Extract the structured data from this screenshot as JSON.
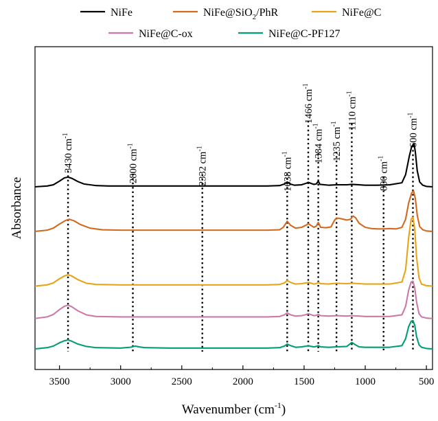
{
  "chart_data": {
    "type": "line",
    "xlabel": "Wavenumber (cm",
    "xlabel_sup": "-1",
    "xlabel_close": ")",
    "ylabel": "Absorbance",
    "xlim": [
      3700,
      450
    ],
    "x_reversed": true,
    "y_ticks": false,
    "grid": false,
    "legend_position": "top",
    "x_ticks": [
      3500,
      3000,
      2500,
      2000,
      1500,
      1000,
      500
    ],
    "x_tick_labels": [
      "3500",
      "3000",
      "2500",
      "2000",
      "1500",
      "1000",
      "500"
    ],
    "series": [
      {
        "name": "NiFe",
        "name_parts": [
          "NiFe"
        ],
        "color": "#000000",
        "offset": 4.0,
        "points": [
          [
            3700,
            0.0
          ],
          [
            3600,
            0.02
          ],
          [
            3550,
            0.05
          ],
          [
            3500,
            0.14
          ],
          [
            3460,
            0.22
          ],
          [
            3430,
            0.24
          ],
          [
            3400,
            0.21
          ],
          [
            3350,
            0.13
          ],
          [
            3300,
            0.07
          ],
          [
            3200,
            0.03
          ],
          [
            3100,
            0.02
          ],
          [
            3000,
            0.02
          ],
          [
            2900,
            0.02
          ],
          [
            2800,
            0.02
          ],
          [
            2600,
            0.02
          ],
          [
            2400,
            0.02
          ],
          [
            2332,
            0.02
          ],
          [
            2200,
            0.02
          ],
          [
            2000,
            0.02
          ],
          [
            1800,
            0.02
          ],
          [
            1700,
            0.03
          ],
          [
            1660,
            0.07
          ],
          [
            1638,
            0.12
          ],
          [
            1615,
            0.07
          ],
          [
            1580,
            0.04
          ],
          [
            1520,
            0.05
          ],
          [
            1480,
            0.09
          ],
          [
            1466,
            0.11
          ],
          [
            1440,
            0.08
          ],
          [
            1420,
            0.06
          ],
          [
            1400,
            0.07
          ],
          [
            1384,
            0.14
          ],
          [
            1370,
            0.06
          ],
          [
            1300,
            0.04
          ],
          [
            1235,
            0.05
          ],
          [
            1150,
            0.05
          ],
          [
            1110,
            0.06
          ],
          [
            1050,
            0.05
          ],
          [
            1000,
            0.04
          ],
          [
            900,
            0.04
          ],
          [
            800,
            0.05
          ],
          [
            700,
            0.1
          ],
          [
            670,
            0.3
          ],
          [
            640,
            0.75
          ],
          [
            620,
            1.0
          ],
          [
            600,
            1.05
          ],
          [
            590,
            0.85
          ],
          [
            575,
            0.4
          ],
          [
            555,
            0.12
          ],
          [
            530,
            0.04
          ],
          [
            500,
            0.01
          ],
          [
            450,
            0.0
          ]
        ]
      },
      {
        "name": "NiFe@SiO2/PhR",
        "name_parts": [
          "NiFe@SiO",
          "2",
          "/PhR"
        ],
        "color": "#d2691e",
        "offset": 2.9,
        "points": [
          [
            3700,
            0.0
          ],
          [
            3600,
            0.03
          ],
          [
            3550,
            0.08
          ],
          [
            3500,
            0.18
          ],
          [
            3450,
            0.27
          ],
          [
            3420,
            0.3
          ],
          [
            3380,
            0.26
          ],
          [
            3330,
            0.17
          ],
          [
            3250,
            0.08
          ],
          [
            3150,
            0.04
          ],
          [
            3000,
            0.03
          ],
          [
            2800,
            0.03
          ],
          [
            2600,
            0.03
          ],
          [
            2400,
            0.03
          ],
          [
            2200,
            0.03
          ],
          [
            2000,
            0.03
          ],
          [
            1800,
            0.03
          ],
          [
            1700,
            0.04
          ],
          [
            1670,
            0.1
          ],
          [
            1638,
            0.25
          ],
          [
            1610,
            0.15
          ],
          [
            1570,
            0.08
          ],
          [
            1520,
            0.1
          ],
          [
            1480,
            0.16
          ],
          [
            1466,
            0.19
          ],
          [
            1440,
            0.14
          ],
          [
            1420,
            0.1
          ],
          [
            1400,
            0.13
          ],
          [
            1384,
            0.22
          ],
          [
            1365,
            0.1
          ],
          [
            1320,
            0.09
          ],
          [
            1280,
            0.11
          ],
          [
            1250,
            0.28
          ],
          [
            1235,
            0.33
          ],
          [
            1210,
            0.32
          ],
          [
            1180,
            0.3
          ],
          [
            1150,
            0.28
          ],
          [
            1120,
            0.3
          ],
          [
            1100,
            0.38
          ],
          [
            1080,
            0.34
          ],
          [
            1050,
            0.2
          ],
          [
            1000,
            0.1
          ],
          [
            950,
            0.07
          ],
          [
            900,
            0.06
          ],
          [
            850,
            0.06
          ],
          [
            800,
            0.07
          ],
          [
            750,
            0.06
          ],
          [
            700,
            0.1
          ],
          [
            670,
            0.3
          ],
          [
            645,
            0.7
          ],
          [
            620,
            0.95
          ],
          [
            605,
            1.0
          ],
          [
            590,
            0.8
          ],
          [
            575,
            0.4
          ],
          [
            555,
            0.12
          ],
          [
            530,
            0.04
          ],
          [
            500,
            0.01
          ],
          [
            450,
            0.0
          ]
        ]
      },
      {
        "name": "NiFe@C",
        "name_parts": [
          "NiFe@C"
        ],
        "color": "#e8a317",
        "offset": 1.55,
        "points": [
          [
            3700,
            0.0
          ],
          [
            3600,
            0.03
          ],
          [
            3550,
            0.08
          ],
          [
            3500,
            0.18
          ],
          [
            3460,
            0.25
          ],
          [
            3430,
            0.28
          ],
          [
            3400,
            0.25
          ],
          [
            3350,
            0.16
          ],
          [
            3280,
            0.07
          ],
          [
            3200,
            0.04
          ],
          [
            3000,
            0.03
          ],
          [
            2800,
            0.03
          ],
          [
            2600,
            0.03
          ],
          [
            2400,
            0.03
          ],
          [
            2200,
            0.03
          ],
          [
            2000,
            0.03
          ],
          [
            1800,
            0.03
          ],
          [
            1700,
            0.04
          ],
          [
            1660,
            0.08
          ],
          [
            1638,
            0.14
          ],
          [
            1610,
            0.09
          ],
          [
            1570,
            0.05
          ],
          [
            1520,
            0.06
          ],
          [
            1480,
            0.08
          ],
          [
            1466,
            0.09
          ],
          [
            1440,
            0.07
          ],
          [
            1420,
            0.05
          ],
          [
            1400,
            0.06
          ],
          [
            1384,
            0.09
          ],
          [
            1365,
            0.06
          ],
          [
            1300,
            0.05
          ],
          [
            1235,
            0.07
          ],
          [
            1150,
            0.06
          ],
          [
            1110,
            0.07
          ],
          [
            1050,
            0.06
          ],
          [
            1000,
            0.05
          ],
          [
            900,
            0.05
          ],
          [
            800,
            0.05
          ],
          [
            700,
            0.1
          ],
          [
            670,
            0.4
          ],
          [
            645,
            1.2
          ],
          [
            625,
            1.65
          ],
          [
            610,
            1.7
          ],
          [
            595,
            1.4
          ],
          [
            580,
            0.7
          ],
          [
            560,
            0.2
          ],
          [
            540,
            0.05
          ],
          [
            500,
            0.01
          ],
          [
            450,
            0.0
          ]
        ]
      },
      {
        "name": "NiFe@C-ox",
        "name_parts": [
          "NiFe@C-ox"
        ],
        "color": "#cc79a7",
        "offset": 0.75,
        "points": [
          [
            3700,
            0.0
          ],
          [
            3600,
            0.04
          ],
          [
            3550,
            0.1
          ],
          [
            3500,
            0.22
          ],
          [
            3460,
            0.3
          ],
          [
            3430,
            0.33
          ],
          [
            3400,
            0.29
          ],
          [
            3350,
            0.19
          ],
          [
            3280,
            0.09
          ],
          [
            3200,
            0.05
          ],
          [
            3000,
            0.04
          ],
          [
            2800,
            0.04
          ],
          [
            2600,
            0.04
          ],
          [
            2400,
            0.04
          ],
          [
            2200,
            0.04
          ],
          [
            2000,
            0.04
          ],
          [
            1800,
            0.04
          ],
          [
            1700,
            0.05
          ],
          [
            1660,
            0.09
          ],
          [
            1638,
            0.14
          ],
          [
            1610,
            0.09
          ],
          [
            1570,
            0.06
          ],
          [
            1520,
            0.07
          ],
          [
            1480,
            0.1
          ],
          [
            1466,
            0.12
          ],
          [
            1440,
            0.09
          ],
          [
            1420,
            0.07
          ],
          [
            1400,
            0.08
          ],
          [
            1384,
            0.1
          ],
          [
            1365,
            0.07
          ],
          [
            1300,
            0.06
          ],
          [
            1235,
            0.07
          ],
          [
            1150,
            0.06
          ],
          [
            1110,
            0.07
          ],
          [
            1050,
            0.06
          ],
          [
            1000,
            0.05
          ],
          [
            900,
            0.05
          ],
          [
            800,
            0.05
          ],
          [
            700,
            0.09
          ],
          [
            670,
            0.3
          ],
          [
            645,
            0.7
          ],
          [
            625,
            0.9
          ],
          [
            610,
            0.92
          ],
          [
            595,
            0.75
          ],
          [
            580,
            0.4
          ],
          [
            560,
            0.12
          ],
          [
            540,
            0.04
          ],
          [
            500,
            0.01
          ],
          [
            450,
            0.0
          ]
        ]
      },
      {
        "name": "NiFe@C-PF127",
        "name_parts": [
          "NiFe@C-PF127"
        ],
        "color": "#009e73",
        "offset": 0.0,
        "points": [
          [
            3700,
            0.0
          ],
          [
            3600,
            0.03
          ],
          [
            3550,
            0.07
          ],
          [
            3500,
            0.15
          ],
          [
            3460,
            0.2
          ],
          [
            3430,
            0.22
          ],
          [
            3400,
            0.19
          ],
          [
            3350,
            0.12
          ],
          [
            3280,
            0.06
          ],
          [
            3200,
            0.03
          ],
          [
            3000,
            0.02
          ],
          [
            2920,
            0.04
          ],
          [
            2880,
            0.07
          ],
          [
            2850,
            0.05
          ],
          [
            2800,
            0.03
          ],
          [
            2600,
            0.02
          ],
          [
            2400,
            0.02
          ],
          [
            2200,
            0.02
          ],
          [
            2000,
            0.02
          ],
          [
            1800,
            0.02
          ],
          [
            1700,
            0.03
          ],
          [
            1660,
            0.07
          ],
          [
            1638,
            0.12
          ],
          [
            1610,
            0.08
          ],
          [
            1570,
            0.04
          ],
          [
            1520,
            0.05
          ],
          [
            1480,
            0.07
          ],
          [
            1466,
            0.08
          ],
          [
            1440,
            0.06
          ],
          [
            1420,
            0.05
          ],
          [
            1400,
            0.06
          ],
          [
            1384,
            0.08
          ],
          [
            1365,
            0.05
          ],
          [
            1300,
            0.04
          ],
          [
            1235,
            0.05
          ],
          [
            1150,
            0.06
          ],
          [
            1110,
            0.16
          ],
          [
            1080,
            0.1
          ],
          [
            1050,
            0.05
          ],
          [
            1000,
            0.04
          ],
          [
            900,
            0.04
          ],
          [
            800,
            0.04
          ],
          [
            700,
            0.08
          ],
          [
            670,
            0.25
          ],
          [
            645,
            0.55
          ],
          [
            625,
            0.68
          ],
          [
            610,
            0.7
          ],
          [
            595,
            0.58
          ],
          [
            580,
            0.3
          ],
          [
            560,
            0.1
          ],
          [
            540,
            0.04
          ],
          [
            500,
            0.01
          ],
          [
            450,
            0.0
          ]
        ]
      }
    ],
    "annotations": [
      {
        "x": 3430,
        "label": "3430 cm",
        "sup": "-1"
      },
      {
        "x": 2900,
        "label": "2800 cm",
        "sup": "-1"
      },
      {
        "x": 2332,
        "label": "2332 cm",
        "sup": "-1"
      },
      {
        "x": 1638,
        "label": "1638 cm",
        "sup": "-1"
      },
      {
        "x": 1466,
        "label": "1466 cm",
        "sup": "-1"
      },
      {
        "x": 1384,
        "label": "1384 cm",
        "sup": "-1"
      },
      {
        "x": 1235,
        "label": "1235 cm",
        "sup": "-1"
      },
      {
        "x": 1110,
        "label": "1110 cm",
        "sup": "-1"
      },
      {
        "x": 850,
        "label": "800 cm",
        "sup": "-1"
      },
      {
        "x": 610,
        "label": "600 cm",
        "sup": "-1"
      }
    ]
  }
}
